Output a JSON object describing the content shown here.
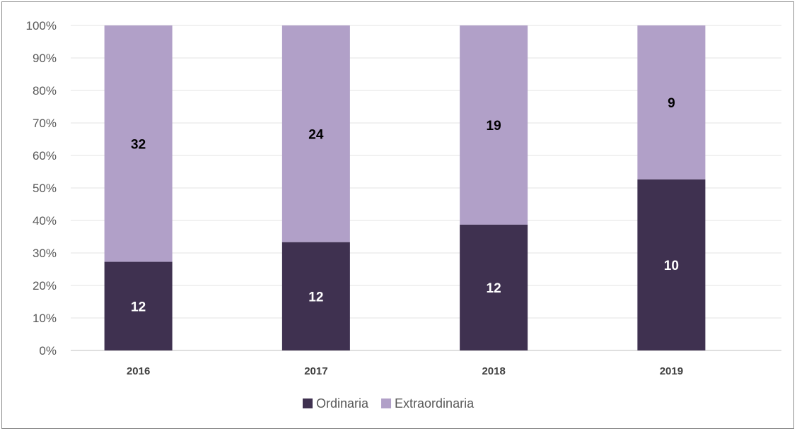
{
  "chart_data": {
    "type": "bar",
    "stacked": "percent",
    "categories": [
      "2016",
      "2017",
      "2018",
      "2019"
    ],
    "series": [
      {
        "name": "Ordinaria",
        "values": [
          12,
          12,
          12,
          10
        ],
        "color": "#3f3150",
        "label_color": "#ffffff"
      },
      {
        "name": "Extraordinaria",
        "values": [
          32,
          24,
          19,
          9
        ],
        "color": "#b1a0c8",
        "label_color": "#000000"
      }
    ],
    "yticks": [
      "0%",
      "10%",
      "20%",
      "30%",
      "40%",
      "50%",
      "60%",
      "70%",
      "80%",
      "90%",
      "100%"
    ],
    "ylim": [
      0,
      100
    ],
    "grid": true,
    "legend": "bottom-center"
  }
}
